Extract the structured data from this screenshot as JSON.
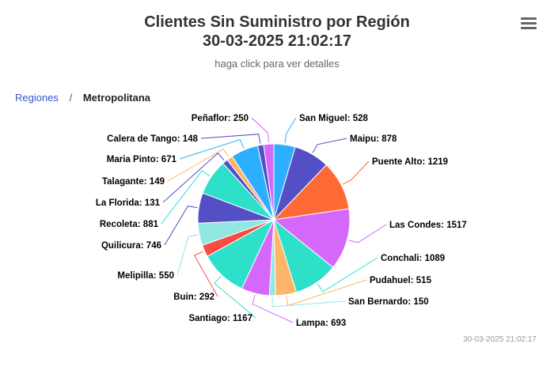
{
  "header": {
    "title_line1": "Clientes Sin Suministro por Región",
    "title_line2": "30-03-2025 21:02:17",
    "subtitle": "haga click para ver detalles"
  },
  "menu_icon": "hamburger-menu-icon",
  "breadcrumb": {
    "parent": "Regiones",
    "separator": "/",
    "current": "Metropolitana"
  },
  "timestamp_footer": "30-03-2025 21:02:17",
  "chart_data": {
    "type": "pie",
    "slices": [
      {
        "name": "San Miguel",
        "value": 528,
        "color": "#2caffe"
      },
      {
        "name": "Maipu",
        "value": 878,
        "color": "#544fc5"
      },
      {
        "name": "Puente Alto",
        "value": 1219,
        "color": "#fe6a35"
      },
      {
        "name": "Las Condes",
        "value": 1517,
        "color": "#d568fb"
      },
      {
        "name": "Conchali",
        "value": 1089,
        "color": "#2ee0ca"
      },
      {
        "name": "Pudahuel",
        "value": 515,
        "color": "#feb56a"
      },
      {
        "name": "San Bernardo",
        "value": 150,
        "color": "#91e8e1"
      },
      {
        "name": "Lampa",
        "value": 693,
        "color": "#d568fb"
      },
      {
        "name": "Santiago",
        "value": 1167,
        "color": "#2ee0ca"
      },
      {
        "name": "Buin",
        "value": 292,
        "color": "#fa4b42"
      },
      {
        "name": "Melipilla",
        "value": 550,
        "color": "#91e8e1"
      },
      {
        "name": "Quilicura",
        "value": 746,
        "color": "#544fc5"
      },
      {
        "name": "Recoleta",
        "value": 881,
        "color": "#2ee0ca"
      },
      {
        "name": "La Florida",
        "value": 131,
        "color": "#544fc5"
      },
      {
        "name": "Talagante",
        "value": 149,
        "color": "#feb56a"
      },
      {
        "name": "Maria Pinto",
        "value": 671,
        "color": "#2caffe"
      },
      {
        "name": "Calera de Tango",
        "value": 148,
        "color": "#544fc5"
      },
      {
        "name": "Peñaflor",
        "value": 250,
        "color": "#d568fb"
      }
    ]
  }
}
